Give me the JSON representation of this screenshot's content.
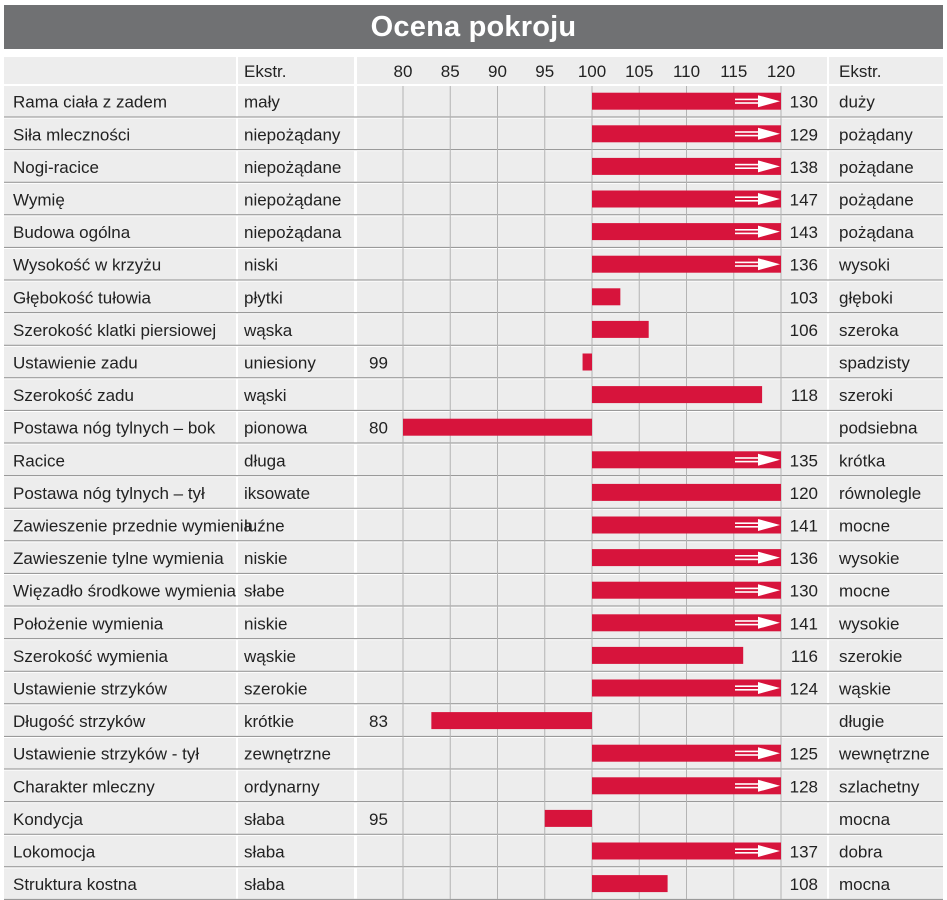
{
  "title": "Ocena pokroju",
  "colors": {
    "bar": "#d7143c",
    "row_band": "#ededed",
    "row_line": "#8c8c8c",
    "grid": "#b4b4b4",
    "title_bg": "#707173",
    "arrow": "#ffffff"
  },
  "chart_data": {
    "type": "bar",
    "title": "Ocena pokroju",
    "orientation": "horizontal",
    "baseline": 100,
    "xlim": [
      80,
      120
    ],
    "ticks": [
      80,
      85,
      90,
      95,
      100,
      105,
      110,
      115,
      120
    ],
    "headers": {
      "low_extreme": "Ekstr.",
      "high_extreme": "Ekstr."
    },
    "overflow_marker": "arrow shown where value exceeds 120",
    "rows": [
      {
        "trait": "Rama ciała z zadem",
        "low": "mały",
        "value": 130,
        "high": "duży"
      },
      {
        "trait": "Siła mleczności",
        "low": "niepożądany",
        "value": 129,
        "high": "pożądany"
      },
      {
        "trait": "Nogi-racice",
        "low": "niepożądane",
        "value": 138,
        "high": "pożądane"
      },
      {
        "trait": "Wymię",
        "low": "niepożądane",
        "value": 147,
        "high": "pożądane"
      },
      {
        "trait": "Budowa ogólna",
        "low": "niepożądana",
        "value": 143,
        "high": "pożądana"
      },
      {
        "trait": "Wysokość w krzyżu",
        "low": "niski",
        "value": 136,
        "high": "wysoki"
      },
      {
        "trait": "Głębokość tułowia",
        "low": "płytki",
        "value": 103,
        "high": "głęboki"
      },
      {
        "trait": "Szerokość klatki piersiowej",
        "low": "wąska",
        "value": 106,
        "high": "szeroka"
      },
      {
        "trait": "Ustawienie zadu",
        "low": "uniesiony",
        "value": 99,
        "high": "spadzisty"
      },
      {
        "trait": "Szerokość zadu",
        "low": "wąski",
        "value": 118,
        "high": "szeroki"
      },
      {
        "trait": "Postawa nóg tylnych –  bok",
        "low": "pionowa",
        "value": 80,
        "high": "podsiebna"
      },
      {
        "trait": "Racice",
        "low": "długa",
        "value": 135,
        "high": "krótka"
      },
      {
        "trait": "Postawa nóg tylnych –  tył",
        "low": "iksowate",
        "value": 120,
        "high": "równolegle"
      },
      {
        "trait": "Zawieszenie przednie wymienia",
        "low": "luźne",
        "value": 141,
        "high": "mocne"
      },
      {
        "trait": "Zawieszenie tylne wymienia",
        "low": "niskie",
        "value": 136,
        "high": "wysokie"
      },
      {
        "trait": "Więzadło środkowe wymienia",
        "low": "słabe",
        "value": 130,
        "high": "mocne"
      },
      {
        "trait": "Położenie wymienia",
        "low": "niskie",
        "value": 141,
        "high": "wysokie"
      },
      {
        "trait": "Szerokość wymienia",
        "low": "wąskie",
        "value": 116,
        "high": "szerokie"
      },
      {
        "trait": "Ustawienie strzyków",
        "low": "szerokie",
        "value": 124,
        "high": "wąskie"
      },
      {
        "trait": "Długość strzyków",
        "low": "krótkie",
        "value": 83,
        "high": "długie"
      },
      {
        "trait": "Ustawienie strzyków - tył",
        "low": "zewnętrzne",
        "value": 125,
        "high": "wewnętrzne"
      },
      {
        "trait": "Charakter mleczny",
        "low": "ordynarny",
        "value": 128,
        "high": "szlachetny"
      },
      {
        "trait": "Kondycja",
        "low": "słaba",
        "value": 95,
        "high": "mocna"
      },
      {
        "trait": "Lokomocja",
        "low": "słaba",
        "value": 137,
        "high": "dobra"
      },
      {
        "trait": "Struktura kostna",
        "low": "słaba",
        "value": 108,
        "high": "mocna"
      }
    ]
  }
}
